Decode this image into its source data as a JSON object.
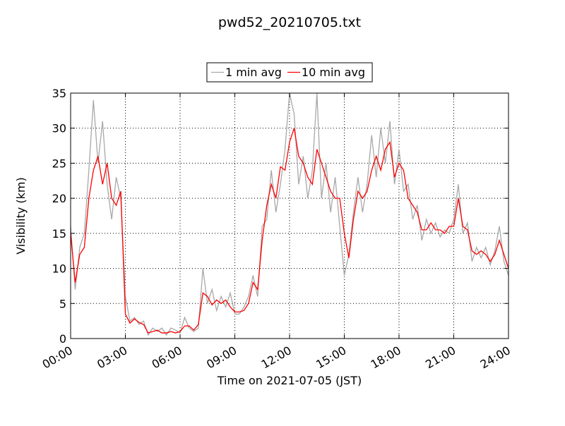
{
  "chart_data": {
    "type": "line",
    "title": "pwd52_20210705.txt",
    "xlabel": "Time on 2021-07-05 (JST)",
    "ylabel": "Visibility (km)",
    "x": [
      0,
      0.25,
      0.5,
      0.75,
      1,
      1.25,
      1.5,
      1.75,
      2,
      2.25,
      2.5,
      2.75,
      3,
      3.25,
      3.5,
      3.75,
      4,
      4.25,
      4.5,
      4.75,
      5,
      5.25,
      5.5,
      5.75,
      6,
      6.25,
      6.5,
      6.75,
      7,
      7.25,
      7.5,
      7.75,
      8,
      8.25,
      8.5,
      8.75,
      9,
      9.25,
      9.5,
      9.75,
      10,
      10.25,
      10.5,
      10.75,
      11,
      11.25,
      11.5,
      11.75,
      12,
      12.25,
      12.5,
      12.75,
      13,
      13.25,
      13.5,
      13.75,
      14,
      14.25,
      14.5,
      14.75,
      15,
      15.25,
      15.5,
      15.75,
      16,
      16.25,
      16.5,
      16.75,
      17,
      17.25,
      17.5,
      17.75,
      18,
      18.25,
      18.5,
      18.75,
      19,
      19.25,
      19.5,
      19.75,
      20,
      20.25,
      20.5,
      20.75,
      21,
      21.25,
      21.5,
      21.75,
      22,
      22.25,
      22.5,
      22.75,
      23,
      23.25,
      23.5,
      23.75,
      24
    ],
    "series": [
      {
        "name": "1 min avg",
        "color": "#a8a8a8",
        "values": [
          16,
          7,
          13,
          15,
          24,
          34,
          25,
          31,
          22,
          17,
          23,
          20,
          6,
          2.5,
          3,
          2,
          2.5,
          0.5,
          1.5,
          1.0,
          1.5,
          0.5,
          1.5,
          1.2,
          0.8,
          3,
          1.5,
          1.0,
          1.5,
          10,
          5,
          7,
          4,
          6,
          4.5,
          6.5,
          3.5,
          3.5,
          4.5,
          6,
          9,
          6,
          16,
          17,
          24,
          18,
          22,
          27,
          35,
          32,
          22,
          26,
          20,
          24,
          35,
          20,
          25,
          18,
          23,
          16,
          9,
          12,
          18,
          23,
          18,
          22,
          29,
          23,
          30,
          25,
          31,
          22,
          27,
          21,
          22,
          17,
          19,
          14,
          17,
          15,
          16.5,
          14.5,
          15.5,
          15,
          17,
          22,
          15,
          16.5,
          11,
          13,
          11.5,
          13,
          10.5,
          12.5,
          16,
          11,
          9
        ]
      },
      {
        "name": "10 min avg",
        "color": "#ff0000",
        "values": [
          15,
          8,
          12,
          13,
          20,
          24,
          26,
          22,
          25,
          20,
          19,
          21,
          3.5,
          2.2,
          2.8,
          2.3,
          2.0,
          0.8,
          1.0,
          1.2,
          0.8,
          0.8,
          1.0,
          0.8,
          1.0,
          1.8,
          1.8,
          1.2,
          2.0,
          6.5,
          6.0,
          4.8,
          5.5,
          5.0,
          5.5,
          4.5,
          3.8,
          3.8,
          4.0,
          5.0,
          8.0,
          7.0,
          14,
          19,
          22,
          20,
          24.5,
          24,
          28,
          30,
          26,
          25,
          23,
          22,
          27,
          25,
          23,
          21,
          20,
          20,
          15,
          11.5,
          17,
          21,
          20,
          21,
          24,
          26,
          24,
          27,
          28,
          23,
          25,
          24,
          20,
          19,
          18,
          15.5,
          15.5,
          16.5,
          15.5,
          15.5,
          15,
          16,
          16,
          20,
          16,
          15.5,
          12.5,
          12,
          12.5,
          12,
          11,
          12,
          14,
          12,
          10
        ]
      }
    ],
    "xlim": [
      0,
      24
    ],
    "xticks": [
      {
        "value": 0,
        "label": "00:00"
      },
      {
        "value": 3,
        "label": "03:00"
      },
      {
        "value": 6,
        "label": "06:00"
      },
      {
        "value": 9,
        "label": "09:00"
      },
      {
        "value": 12,
        "label": "12:00"
      },
      {
        "value": 15,
        "label": "15:00"
      },
      {
        "value": 18,
        "label": "18:00"
      },
      {
        "value": 21,
        "label": "21:00"
      },
      {
        "value": 24,
        "label": "24:00"
      }
    ],
    "ylim": [
      0,
      35
    ],
    "yticks": [
      0,
      5,
      10,
      15,
      20,
      25,
      30,
      35
    ],
    "grid": true,
    "legend": "top"
  }
}
